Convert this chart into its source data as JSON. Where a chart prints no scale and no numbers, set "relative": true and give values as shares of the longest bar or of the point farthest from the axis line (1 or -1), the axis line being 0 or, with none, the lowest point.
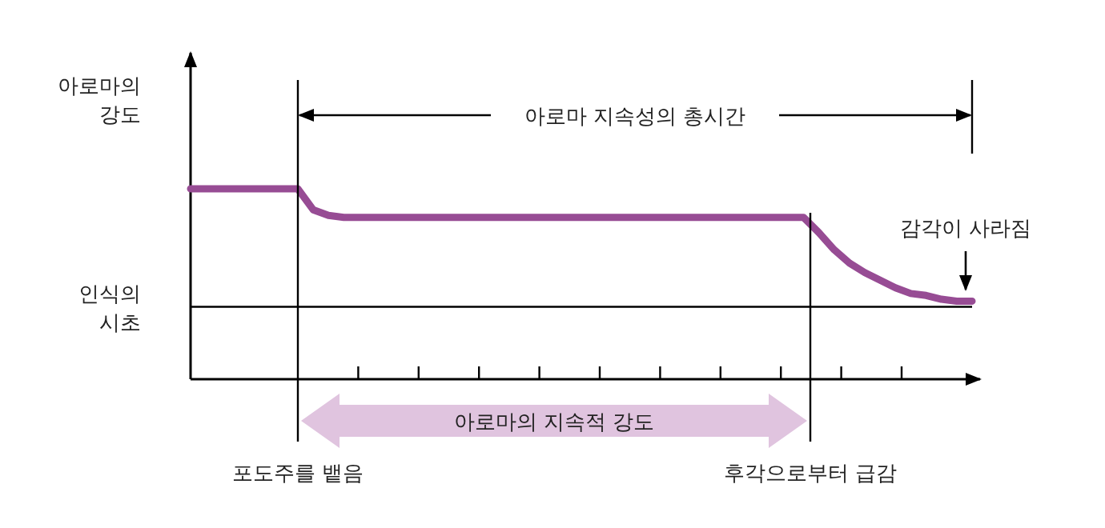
{
  "chart_data": {
    "type": "line",
    "relative": true,
    "ylabel": "아로마의 강도",
    "categories": [
      null,
      null,
      null,
      null,
      null,
      null,
      null,
      null,
      null,
      null,
      null,
      null,
      null,
      null,
      null,
      null,
      null,
      null,
      null,
      null,
      null,
      null,
      null,
      null,
      null,
      null,
      null,
      null,
      null,
      null,
      null,
      null,
      null,
      null,
      null,
      null,
      null,
      null,
      null,
      null,
      null,
      null,
      null,
      null,
      null,
      null,
      null,
      null,
      null,
      null,
      null,
      null
    ],
    "series": [
      {
        "color": "#974c94",
        "values": [
          1,
          1,
          1,
          1,
          1,
          1,
          1,
          1,
          0.89,
          0.86,
          0.85,
          0.85,
          0.85,
          0.85,
          0.85,
          0.85,
          0.85,
          0.85,
          0.85,
          0.85,
          0.85,
          0.85,
          0.85,
          0.85,
          0.85,
          0.85,
          0.85,
          0.85,
          0.85,
          0.85,
          0.85,
          0.85,
          0.85,
          0.85,
          0.85,
          0.85,
          0.85,
          0.85,
          0.85,
          0.85,
          0.85,
          0.77,
          0.68,
          0.61,
          0.56,
          0.52,
          0.48,
          0.45,
          0.44,
          0.42,
          0.41,
          0.41
        ]
      }
    ],
    "line_style": "solid",
    "ref_lines": [
      {
        "axis": "y",
        "value": 0.38,
        "label": "인식의 시초",
        "color": "#000000"
      }
    ],
    "annotations": [
      "아로마 지속성의 총시간",
      "아로마의 지속적 강도",
      "감각이 사라짐",
      "포도주를 뱉음",
      "후각으로부터 급감"
    ]
  }
}
